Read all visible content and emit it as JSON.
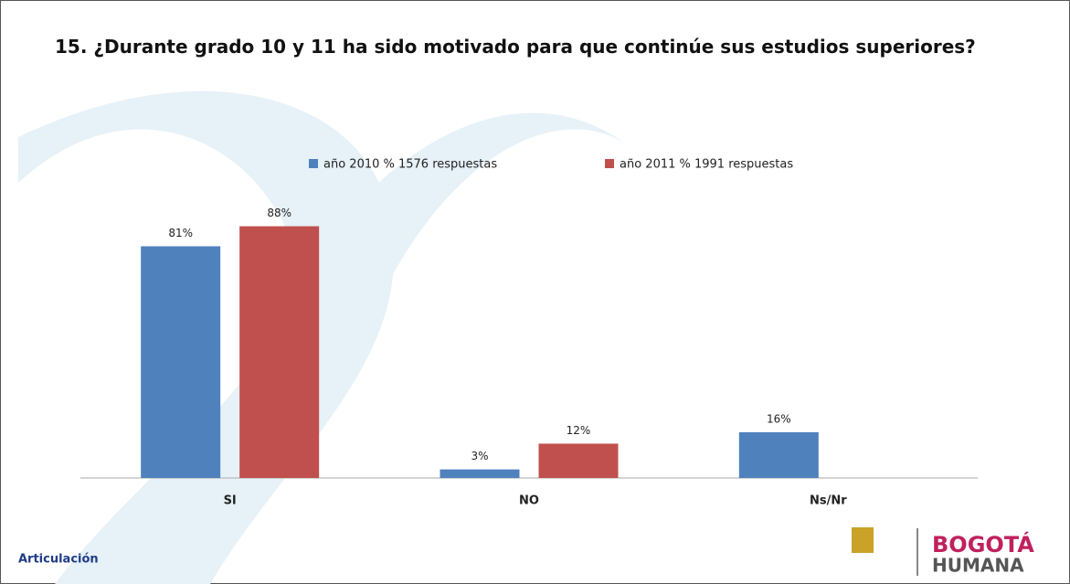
{
  "chart_data": {
    "type": "bar",
    "title": "15. ¿Durante grado 10 y 11 ha sido motivado para que  continúe sus estudios superiores?",
    "categories": [
      "SI",
      "NO",
      "Ns/Nr"
    ],
    "series": [
      {
        "name": "año 2010 % 1576 respuestas",
        "color": "#4f81bd",
        "values": [
          81,
          3,
          16
        ],
        "value_labels": [
          "81%",
          "3%",
          "16%"
        ]
      },
      {
        "name": "año 2011 % 1991 respuestas",
        "color": "#c0504d",
        "values": [
          88,
          12,
          null
        ],
        "value_labels": [
          "88%",
          "12%",
          null
        ]
      }
    ],
    "legend": "top"
  },
  "logos": {
    "left": "Articulación",
    "right_top": "BOGOTÁ",
    "right_bottom": "HUMANA"
  }
}
